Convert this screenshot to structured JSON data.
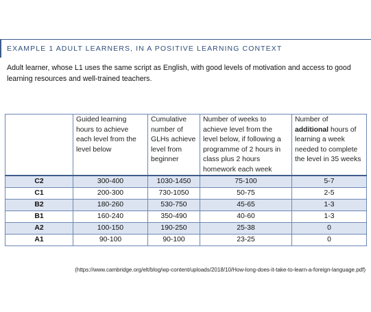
{
  "heading": "EXAMPLE 1   ADULT LEARNERS, IN A POSITIVE LEARNING CONTEXT",
  "intro": "Adult learner, whose L1 uses the same script as English, with good levels of motivation and access to good learning resources and well-trained teachers.",
  "table": {
    "headers": [
      "",
      "Guided learning hours to achieve each level from the level below",
      "Cumulative number of GLHs achieve level from beginner",
      "Number of weeks to achieve level from the level below, if following a programme of 2 hours in class plus 2 hours homework each week"
    ],
    "header_last": {
      "before": "Number of ",
      "bold": "additional",
      "after": " hours of learning a week needed to complete the level in 35 weeks"
    },
    "rows": [
      {
        "level": "C2",
        "glh": "300-400",
        "cumulative": "1030-1450",
        "weeks": "75-100",
        "additional": "5-7"
      },
      {
        "level": "C1",
        "glh": "200-300",
        "cumulative": "730-1050",
        "weeks": "50-75",
        "additional": "2-5"
      },
      {
        "level": "B2",
        "glh": "180-260",
        "cumulative": "530-750",
        "weeks": "45-65",
        "additional": "1-3"
      },
      {
        "level": "B1",
        "glh": "160-240",
        "cumulative": "350-490",
        "weeks": "40-60",
        "additional": "1-3"
      },
      {
        "level": "A2",
        "glh": "100-150",
        "cumulative": "190-250",
        "weeks": "25-38",
        "additional": "0"
      },
      {
        "level": "A1",
        "glh": "90-100",
        "cumulative": "90-100",
        "weeks": "23-25",
        "additional": "0"
      }
    ]
  },
  "source": "(https://www.cambridge.org/elt/blog/wp-content/uploads/2018/10/How-long-does-it-take-to-learn-a-foreign-language.pdf)",
  "colors": {
    "accent": "#3d5c8a",
    "row_shade": "#dce4f1",
    "border": "#6b86b3"
  }
}
